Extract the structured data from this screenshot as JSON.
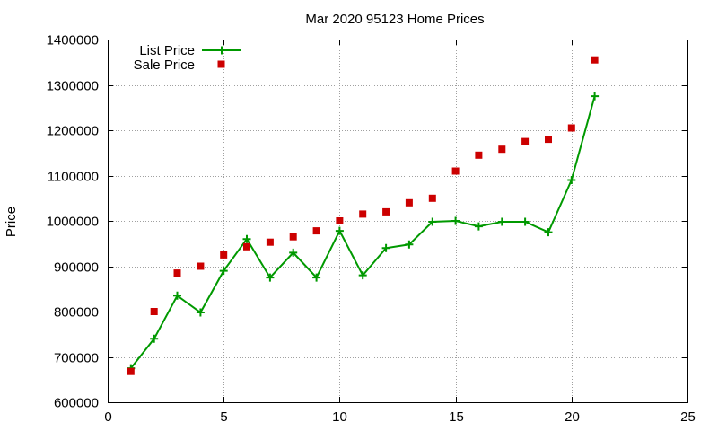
{
  "chart_data": {
    "type": "line",
    "title": "Mar 2020 95123 Home Prices",
    "xlabel": "",
    "ylabel": "Price",
    "xlim": [
      0,
      25
    ],
    "ylim": [
      600000,
      1400000
    ],
    "x_ticks": [
      0,
      5,
      10,
      15,
      20,
      25
    ],
    "y_ticks": [
      600000,
      700000,
      800000,
      900000,
      1000000,
      1100000,
      1200000,
      1300000,
      1400000
    ],
    "grid": true,
    "legend_position": "top-left",
    "series": [
      {
        "name": "List Price",
        "style": "line-with-plus-markers",
        "color": "#009900",
        "x": [
          1,
          2,
          3,
          4,
          5,
          6,
          7,
          8,
          9,
          10,
          11,
          12,
          13,
          14,
          15,
          16,
          17,
          18,
          19,
          20,
          21
        ],
        "values": [
          675000,
          740000,
          835000,
          798000,
          890000,
          960000,
          875000,
          930000,
          875000,
          978000,
          880000,
          940000,
          948000,
          998000,
          1000000,
          988000,
          998000,
          998000,
          975000,
          1090000,
          1275000
        ]
      },
      {
        "name": "Sale Price",
        "style": "square-markers",
        "color": "#cc0000",
        "x": [
          1,
          2,
          3,
          4,
          5,
          6,
          7,
          8,
          9,
          10,
          11,
          12,
          13,
          14,
          15,
          16,
          17,
          18,
          19,
          20,
          21
        ],
        "values": [
          668000,
          800000,
          885000,
          900000,
          925000,
          943000,
          953000,
          965000,
          978000,
          1000000,
          1015000,
          1020000,
          1040000,
          1050000,
          1110000,
          1145000,
          1158000,
          1175000,
          1180000,
          1205000,
          1355000
        ]
      }
    ]
  }
}
